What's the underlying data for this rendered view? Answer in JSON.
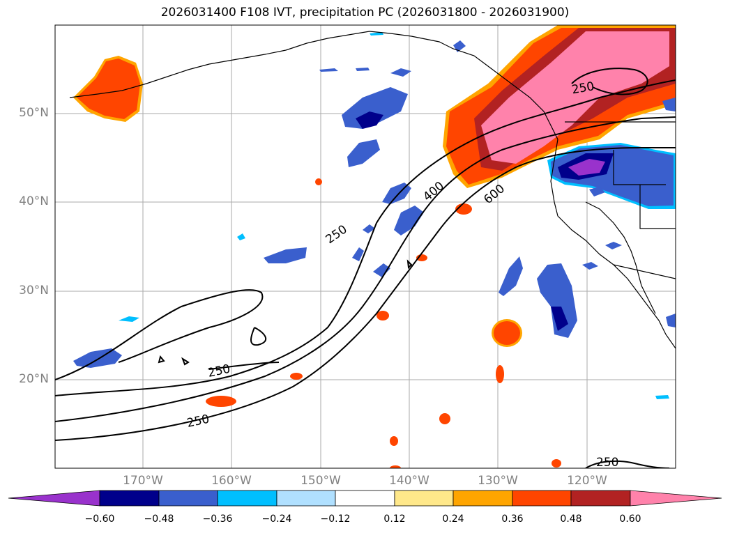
{
  "title": "2026031400 F108 IVT, precipitation PC (2026031800 - 2026031900)",
  "lat_labels": [
    "50°N",
    "40°N",
    "30°N",
    "20°N"
  ],
  "lon_labels": [
    "170°W",
    "160°W",
    "150°W",
    "140°W",
    "130°W",
    "120°W"
  ],
  "contour_labels": [
    "250",
    "400",
    "600",
    "250",
    "250",
    "250",
    "250"
  ],
  "colorbar": {
    "ticks": [
      "−0.60",
      "−0.48",
      "−0.36",
      "−0.24",
      "−0.12",
      "0.12",
      "0.24",
      "0.36",
      "0.48",
      "0.60"
    ],
    "colors": [
      "#9932cc",
      "#00008b",
      "#3a5fcd",
      "#00bfff",
      "#b0e0ff",
      "#ffffff",
      "#ffe88a",
      "#ffa500",
      "#ff4500",
      "#b22222",
      "#ff82ab"
    ]
  }
}
